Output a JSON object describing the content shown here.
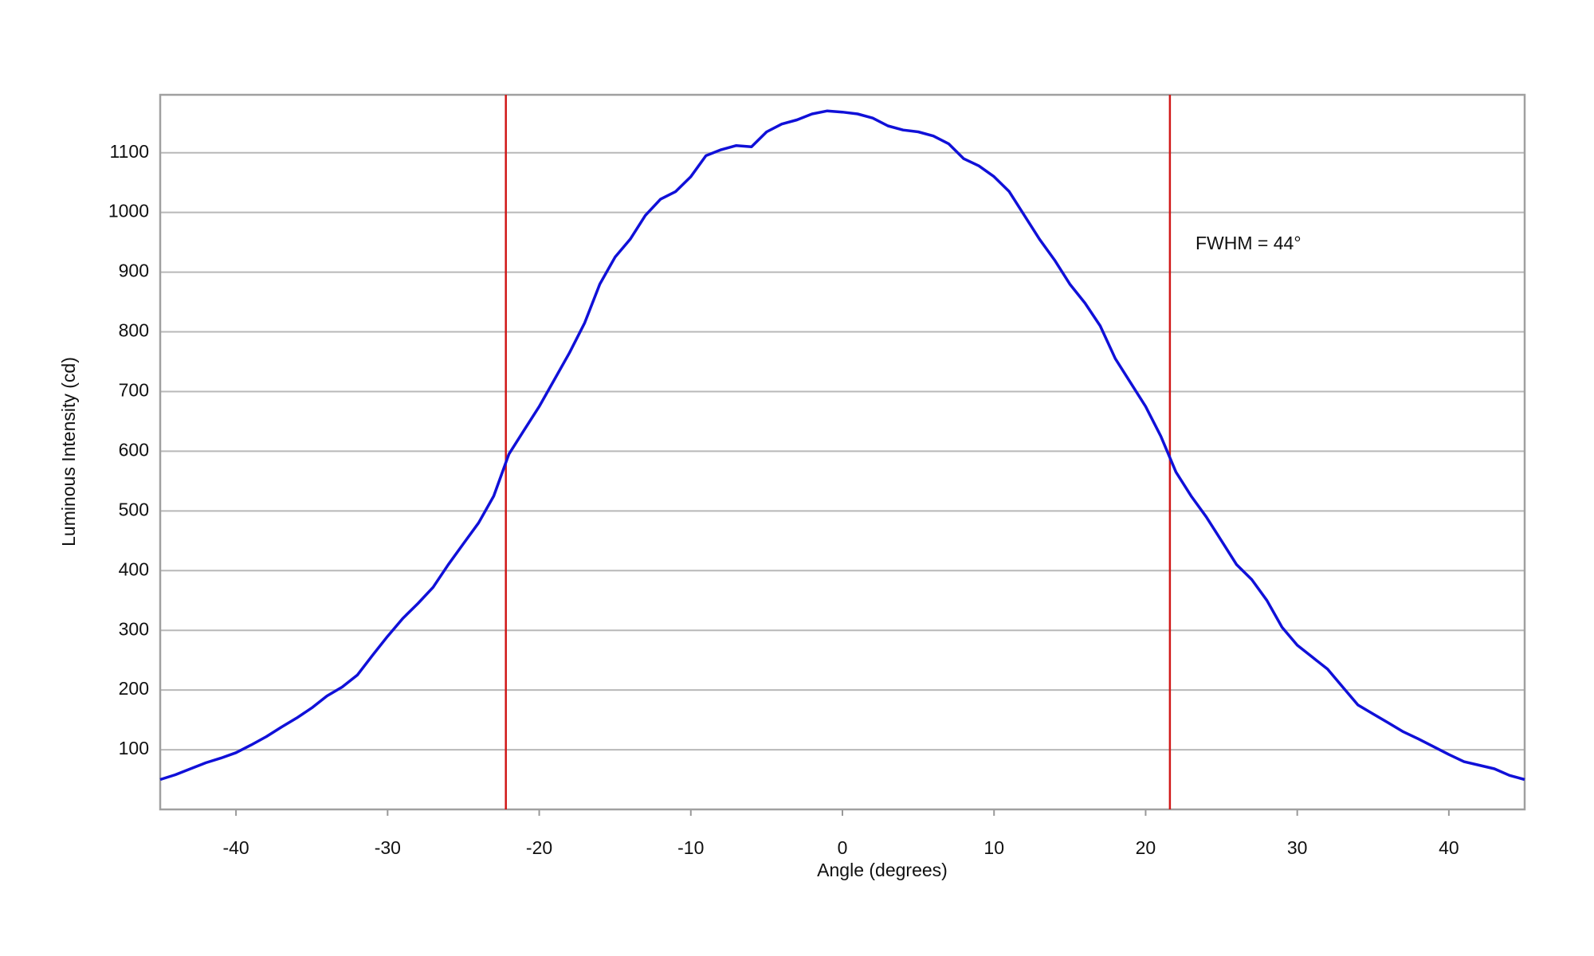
{
  "chart_data": {
    "type": "line",
    "x_label": "Angle (degrees)",
    "y_label": "Luminous Intensity (cd)",
    "annotation": "FWHM = 44°",
    "x": [
      -45,
      -44,
      -43,
      -42,
      -41,
      -40,
      -39,
      -38,
      -37,
      -36,
      -35,
      -34,
      -33,
      -32,
      -31,
      -30,
      -29,
      -28,
      -27,
      -26,
      -25,
      -24,
      -23,
      -22,
      -21,
      -20,
      -19,
      -18,
      -17,
      -16,
      -15,
      -14,
      -13,
      -12,
      -11,
      -10,
      -9,
      -8,
      -7,
      -6,
      -5,
      -4,
      -3,
      -2,
      -1,
      0,
      1,
      2,
      3,
      4,
      5,
      6,
      7,
      8,
      9,
      10,
      11,
      12,
      13,
      14,
      15,
      16,
      17,
      18,
      19,
      20,
      21,
      22,
      23,
      24,
      25,
      26,
      27,
      28,
      29,
      30,
      31,
      32,
      33,
      34,
      35,
      36,
      37,
      38,
      39,
      40,
      41,
      42,
      43,
      44,
      45
    ],
    "series": [
      {
        "color": "#1010d8",
        "values": [
          50,
          58,
          68,
          78,
          86,
          95,
          108,
          122,
          138,
          153,
          170,
          190,
          205,
          225,
          258,
          290,
          320,
          345,
          372,
          410,
          445,
          480,
          525,
          595,
          635,
          675,
          720,
          765,
          815,
          880,
          925,
          955,
          995,
          1022,
          1035,
          1060,
          1095,
          1105,
          1112,
          1110,
          1135,
          1148,
          1155,
          1165,
          1170,
          1168,
          1165,
          1158,
          1145,
          1138,
          1135,
          1128,
          1115,
          1090,
          1078,
          1060,
          1035,
          995,
          955,
          920,
          880,
          848,
          810,
          755,
          715,
          675,
          625,
          565,
          525,
          490,
          450,
          410,
          385,
          350,
          305,
          275,
          255,
          235,
          205,
          175,
          160,
          145,
          130,
          118,
          105,
          92,
          80,
          74,
          68,
          57,
          50
        ]
      }
    ],
    "vlines": {
      "color": "#d01818",
      "values": [
        -22.2,
        21.6
      ]
    },
    "xlim": [
      -45,
      45
    ],
    "xticks": [
      -40,
      -30,
      -20,
      -10,
      0,
      10,
      20,
      30,
      40
    ],
    "ylim": [
      0,
      1197
    ],
    "yticks": [
      100,
      200,
      300,
      400,
      500,
      600,
      700,
      800,
      900,
      1000,
      1100
    ],
    "grid": true
  }
}
